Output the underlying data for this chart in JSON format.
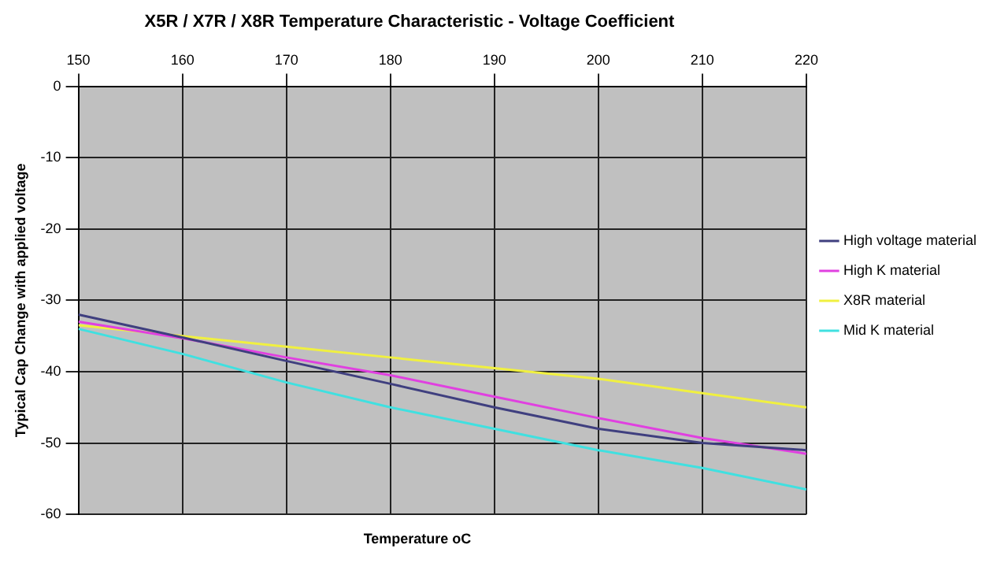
{
  "chart_data": {
    "type": "line",
    "title": "X5R / X7R / X8R Temperature Characteristic - Voltage Coefficient",
    "xlabel": "Temperature oC",
    "ylabel": "Typical Cap Change with applied voltage",
    "x": [
      150,
      160,
      170,
      180,
      190,
      200,
      210,
      220
    ],
    "series": [
      {
        "name": "High voltage material",
        "color": "#3f3f7f",
        "values": [
          -32,
          -35.2,
          -38.5,
          -41.7,
          -45,
          -48,
          -50,
          -51
        ]
      },
      {
        "name": "High K material",
        "color": "#e040e0",
        "values": [
          -33,
          -35.3,
          -38,
          -40.5,
          -43.5,
          -46.5,
          -49.3,
          -51.5
        ]
      },
      {
        "name": "X8R material",
        "color": "#f0f040",
        "values": [
          -33.5,
          -35,
          -36.5,
          -38,
          -39.5,
          -41,
          -43,
          -45
        ]
      },
      {
        "name": "Mid K material",
        "color": "#40e0e0",
        "values": [
          -34,
          -37.5,
          -41.5,
          -45,
          -48,
          -51,
          -53.5,
          -56.5
        ]
      }
    ],
    "xlim": [
      150,
      220
    ],
    "xticks": [
      150,
      160,
      170,
      180,
      190,
      200,
      210,
      220
    ],
    "ylim": [
      -60,
      0
    ],
    "yticks": [
      0,
      -10,
      -20,
      -30,
      -40,
      -50,
      -60
    ],
    "grid": true,
    "legend": "right",
    "marker": "none",
    "line_style": "solid"
  }
}
